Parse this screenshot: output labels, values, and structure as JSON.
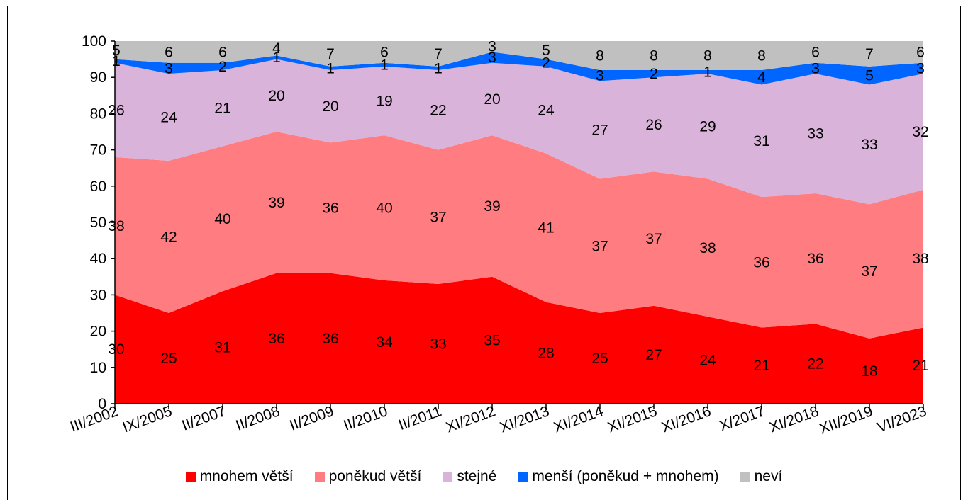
{
  "chart_data": {
    "type": "area",
    "stacked": true,
    "title": "",
    "xlabel": "",
    "ylabel": "",
    "ylim": [
      0,
      100
    ],
    "yticks": [
      0,
      10,
      20,
      30,
      40,
      50,
      60,
      70,
      80,
      90,
      100
    ],
    "categories": [
      "III/2002",
      "IX/2005",
      "II/2007",
      "II/2008",
      "II/2009",
      "II/2010",
      "II/2011",
      "XI/2012",
      "XI/2013",
      "XI/2014",
      "XI/2015",
      "XI/2016",
      "X/2017",
      "XI/2018",
      "XII/2019",
      "VI/2023"
    ],
    "series": [
      {
        "name": "mnohem větší",
        "color": "#ff0000",
        "values": [
          30,
          25,
          31,
          36,
          36,
          34,
          33,
          35,
          28,
          25,
          27,
          24,
          21,
          22,
          18,
          21
        ]
      },
      {
        "name": "poněkud větší",
        "color": "#ff7c80",
        "values": [
          38,
          42,
          40,
          39,
          36,
          40,
          37,
          39,
          41,
          37,
          37,
          38,
          36,
          36,
          37,
          38
        ]
      },
      {
        "name": "stejné",
        "color": "#d9b3d9",
        "values": [
          26,
          24,
          21,
          20,
          20,
          19,
          22,
          20,
          24,
          27,
          26,
          29,
          31,
          33,
          33,
          32
        ]
      },
      {
        "name": "menší (poněkud + mnohem)",
        "color": "#0066ff",
        "values": [
          1,
          3,
          2,
          1,
          1,
          1,
          1,
          3,
          2,
          3,
          2,
          1,
          4,
          3,
          5,
          3
        ]
      },
      {
        "name": "neví",
        "color": "#c0c0c0",
        "values": [
          5,
          6,
          6,
          4,
          7,
          6,
          7,
          3,
          5,
          8,
          8,
          8,
          8,
          6,
          7,
          6
        ]
      }
    ],
    "legend_position": "bottom",
    "grid": false
  }
}
